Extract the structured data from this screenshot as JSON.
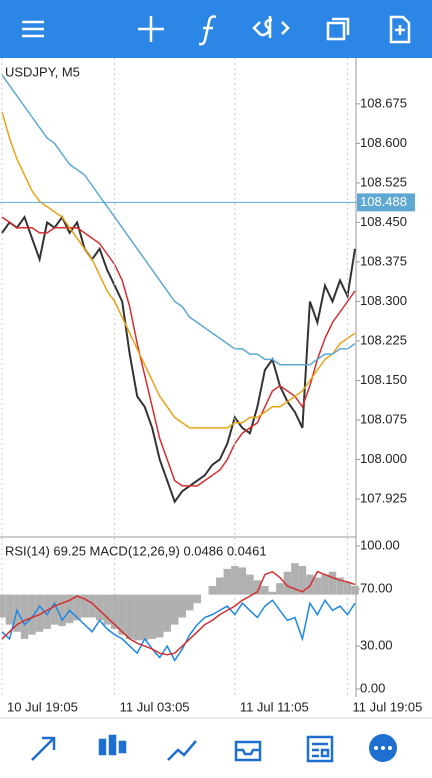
{
  "chart_data": [
    {
      "type": "line",
      "title": "USDJPY, M5",
      "categories": [
        "10 Jul 19:05",
        null,
        null,
        null,
        null,
        null,
        null,
        null,
        null,
        null,
        null,
        null,
        null,
        null,
        null,
        "11 Jul 03:05",
        null,
        null,
        null,
        null,
        null,
        null,
        null,
        null,
        null,
        null,
        null,
        null,
        null,
        null,
        null,
        "11 Jul 11:05",
        null,
        null,
        null,
        null,
        null,
        null,
        null,
        null,
        null,
        null,
        null,
        null,
        null,
        null,
        "11 Jul 19:05",
        null
      ],
      "series": [
        {
          "name": "USDJPY",
          "color": "#333333",
          "values": [
            108.43,
            108.45,
            108.44,
            108.46,
            108.42,
            108.38,
            108.45,
            108.44,
            108.46,
            108.43,
            108.45,
            108.4,
            108.38,
            108.4,
            108.36,
            108.33,
            108.3,
            108.2,
            108.12,
            108.1,
            108.06,
            108.0,
            107.96,
            107.92,
            107.94,
            107.95,
            107.96,
            107.97,
            107.99,
            108.0,
            108.03,
            108.08,
            108.06,
            108.05,
            108.1,
            108.17,
            108.19,
            108.14,
            108.11,
            108.09,
            108.06,
            108.3,
            108.26,
            108.33,
            108.3,
            108.34,
            108.31,
            108.4
          ]
        },
        {
          "color": "#d32f2f",
          "values": [
            108.46,
            108.45,
            108.44,
            108.44,
            108.44,
            108.43,
            108.43,
            108.44,
            108.44,
            108.44,
            108.44,
            108.43,
            108.42,
            108.41,
            108.39,
            108.37,
            108.34,
            108.29,
            108.22,
            108.16,
            108.1,
            108.04,
            108.0,
            107.96,
            107.95,
            107.95,
            107.95,
            107.96,
            107.97,
            107.98,
            108.0,
            108.03,
            108.05,
            108.06,
            108.07,
            108.1,
            108.13,
            108.14,
            108.13,
            108.12,
            108.1,
            108.14,
            108.19,
            108.23,
            108.26,
            108.28,
            108.3,
            108.32
          ]
        },
        {
          "color": "#e8a317",
          "values": [
            108.66,
            108.61,
            108.57,
            108.54,
            108.51,
            108.49,
            108.48,
            108.47,
            108.46,
            108.44,
            108.42,
            108.4,
            108.38,
            108.35,
            108.32,
            108.3,
            108.27,
            108.24,
            108.21,
            108.18,
            108.15,
            108.12,
            108.1,
            108.08,
            108.07,
            108.06,
            108.06,
            108.06,
            108.06,
            108.06,
            108.06,
            108.07,
            108.07,
            108.08,
            108.08,
            108.09,
            108.1,
            108.1,
            108.11,
            108.12,
            108.13,
            108.15,
            108.17,
            108.19,
            108.2,
            108.22,
            108.23,
            108.24
          ]
        },
        {
          "color": "#5fa8d3",
          "values": [
            108.73,
            108.71,
            108.69,
            108.67,
            108.65,
            108.63,
            108.61,
            108.6,
            108.58,
            108.56,
            108.55,
            108.54,
            108.52,
            108.5,
            108.48,
            108.46,
            108.44,
            108.42,
            108.4,
            108.38,
            108.36,
            108.34,
            108.32,
            108.3,
            108.29,
            108.27,
            108.26,
            108.25,
            108.24,
            108.23,
            108.22,
            108.21,
            108.21,
            108.2,
            108.2,
            108.19,
            108.19,
            108.18,
            108.18,
            108.18,
            108.18,
            108.18,
            108.19,
            108.2,
            108.2,
            108.21,
            108.21,
            108.22
          ]
        }
      ],
      "current_price": 108.488,
      "ylim": [
        107.853,
        108.762
      ],
      "yticks": [
        108.675,
        {
          "value": 108.6,
          "label": "108.600"
        },
        108.525,
        {
          "value": 108.45,
          "label": "108.450"
        },
        108.375,
        {
          "value": 108.3,
          "label": "108.300"
        },
        108.225,
        {
          "value": 108.15,
          "label": "108.150"
        },
        108.075,
        {
          "value": 108.0,
          "label": "108.000"
        },
        107.925
      ]
    },
    {
      "type": "line",
      "title": "RSI(14) 69.25 MACD(12,26,9) 0.0486 0.0461",
      "series": [
        {
          "type": "bar",
          "color": "#b0b0b0",
          "baseline": 66,
          "values": [
            50,
            45,
            40,
            35,
            38,
            40,
            42,
            45,
            44,
            46,
            48,
            50,
            50,
            48,
            45,
            42,
            38,
            35,
            34,
            34,
            35,
            36,
            40,
            45,
            50,
            55,
            60,
            66,
            72,
            78,
            84,
            86,
            85,
            80,
            76,
            72,
            68,
            74,
            82,
            88,
            86,
            80,
            78,
            80,
            82,
            78,
            75,
            72
          ]
        },
        {
          "color": "#1e88e5",
          "values": [
            40,
            35,
            55,
            45,
            50,
            58,
            52,
            60,
            48,
            55,
            50,
            45,
            40,
            48,
            42,
            38,
            35,
            30,
            25,
            35,
            28,
            22,
            30,
            20,
            28,
            38,
            45,
            50,
            52,
            55,
            58,
            52,
            60,
            55,
            50,
            58,
            62,
            55,
            48,
            50,
            35,
            60,
            52,
            62,
            55,
            58,
            52,
            60
          ]
        },
        {
          "color": "#d32f2f",
          "values": [
            35,
            40,
            45,
            48,
            50,
            52,
            55,
            58,
            60,
            62,
            65,
            63,
            60,
            55,
            50,
            45,
            40,
            35,
            32,
            30,
            28,
            25,
            24,
            25,
            30,
            35,
            40,
            45,
            48,
            52,
            55,
            58,
            62,
            65,
            68,
            80,
            82,
            78,
            72,
            70,
            68,
            72,
            82,
            80,
            78,
            76,
            75,
            73
          ]
        }
      ],
      "ylim": [
        -5.6,
        106.3
      ],
      "yticks": [
        {
          "value": 100,
          "label": "100.00"
        },
        {
          "value": 70,
          "label": "70.00"
        },
        {
          "value": 30,
          "label": "30.00"
        },
        {
          "value": 0,
          "label": "0.00"
        }
      ]
    }
  ]
}
